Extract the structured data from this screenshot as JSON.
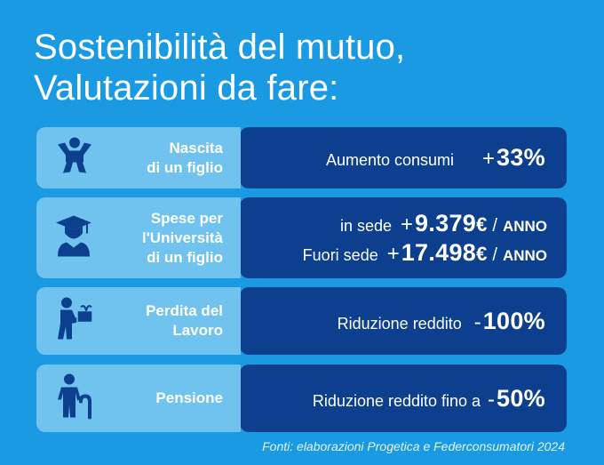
{
  "title": {
    "line1": "Sostenibilità del mutuo,",
    "line2": "Valutazioni da fare:"
  },
  "rows": [
    {
      "icon": "baby-icon",
      "label_line1": "Nascita",
      "label_line2": "di un figlio",
      "desc": "Aumento consumi",
      "sign": "+",
      "value": "33%"
    },
    {
      "icon": "graduate-icon",
      "label_line1": "Spese per",
      "label_line2": "l'Università",
      "label_line3": "di un figlio",
      "lines": [
        {
          "desc": "in sede",
          "sign": "+",
          "value": "9.379",
          "currency": "€",
          "slash": "/",
          "unit": "ANNO"
        },
        {
          "desc": "Fuori sede",
          "sign": "+",
          "value": "17.498",
          "currency": "€",
          "slash": "/",
          "unit": "ANNO"
        }
      ]
    },
    {
      "icon": "person-carrying-box-icon",
      "label_line1": "Perdita del",
      "label_line2": "Lavoro",
      "desc": "Riduzione reddito",
      "sign": "-",
      "value": "100%"
    },
    {
      "icon": "elderly-person-icon",
      "label_line1": "Pensione",
      "desc": "Riduzione reddito fino a",
      "sign": "-",
      "value": "50%"
    }
  ],
  "sources": "Fonti: elaborazioni Progetica e Federconsumatori 2024"
}
